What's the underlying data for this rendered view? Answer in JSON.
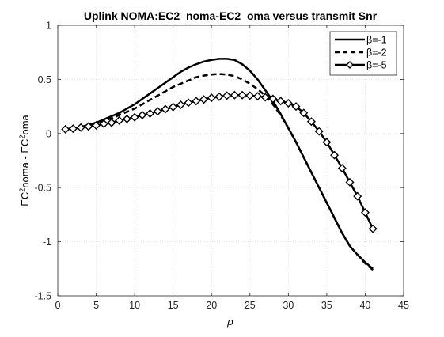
{
  "chart_data": {
    "type": "line",
    "title": "Uplink NOMA:EC2_noma-EC2_oma versus transmit Snr",
    "xlabel": "ρ",
    "ylabel": {
      "p1": "EC",
      "sup1": "2",
      "p2": "noma - EC",
      "sup2": "2",
      "p3": "oma"
    },
    "xlim": [
      0,
      45
    ],
    "ylim": [
      -1.5,
      1
    ],
    "xticks": [
      0,
      5,
      10,
      15,
      20,
      25,
      30,
      35,
      40,
      45
    ],
    "yticks": [
      -1.5,
      -1,
      -0.5,
      0,
      0.5,
      1
    ],
    "xtick_labels": [
      "0",
      "5",
      "10",
      "15",
      "20",
      "25",
      "30",
      "35",
      "40",
      "45"
    ],
    "ytick_labels": [
      "-1.5",
      "-1",
      "-0.5",
      "0",
      "0.5",
      "1"
    ],
    "grid": true,
    "legend_position": "top-right",
    "series": [
      {
        "name": "β=-1",
        "style": "solid",
        "marker": "none",
        "color": "#000000",
        "x": [
          1,
          2,
          3,
          4,
          5,
          6,
          7,
          8,
          9,
          10,
          11,
          12,
          13,
          14,
          15,
          16,
          17,
          18,
          19,
          20,
          21,
          22,
          23,
          24,
          25,
          26,
          27,
          28,
          29,
          30,
          31,
          32,
          33,
          34,
          35,
          36,
          37,
          38,
          39,
          40,
          41
        ],
        "y": [
          0.04,
          0.05,
          0.06,
          0.08,
          0.1,
          0.13,
          0.16,
          0.19,
          0.23,
          0.27,
          0.32,
          0.37,
          0.42,
          0.47,
          0.52,
          0.57,
          0.61,
          0.64,
          0.665,
          0.68,
          0.69,
          0.69,
          0.68,
          0.64,
          0.58,
          0.5,
          0.4,
          0.3,
          0.18,
          0.05,
          -0.08,
          -0.22,
          -0.36,
          -0.5,
          -0.64,
          -0.78,
          -0.92,
          -1.04,
          -1.12,
          -1.19,
          -1.25
        ]
      },
      {
        "name": "β=-2",
        "style": "dashed",
        "marker": "none",
        "color": "#000000",
        "x": [
          1,
          2,
          3,
          4,
          5,
          6,
          7,
          8,
          9,
          10,
          11,
          12,
          13,
          14,
          15,
          16,
          17,
          18,
          19,
          20,
          21,
          22,
          23,
          24,
          25,
          26,
          27,
          28,
          29,
          30,
          31,
          32,
          33,
          34,
          35,
          36,
          37,
          38,
          39,
          40,
          41
        ],
        "y": [
          0.04,
          0.05,
          0.06,
          0.08,
          0.1,
          0.12,
          0.14,
          0.17,
          0.2,
          0.23,
          0.27,
          0.31,
          0.35,
          0.39,
          0.43,
          0.46,
          0.49,
          0.52,
          0.535,
          0.545,
          0.55,
          0.545,
          0.53,
          0.5,
          0.46,
          0.41,
          0.35,
          0.27,
          0.17,
          0.05,
          -0.08,
          -0.22,
          -0.36,
          -0.5,
          -0.64,
          -0.78,
          -0.92,
          -1.04,
          -1.12,
          -1.2,
          -1.26
        ]
      },
      {
        "name": "β=-5",
        "style": "solid",
        "marker": "diamond",
        "color": "#000000",
        "x": [
          1,
          2,
          3,
          4,
          5,
          6,
          7,
          8,
          9,
          10,
          11,
          12,
          13,
          14,
          15,
          16,
          17,
          18,
          19,
          20,
          21,
          22,
          23,
          24,
          25,
          26,
          27,
          28,
          29,
          30,
          31,
          32,
          33,
          34,
          35,
          36,
          37,
          38,
          39,
          40,
          41
        ],
        "y": [
          0.04,
          0.045,
          0.055,
          0.065,
          0.075,
          0.09,
          0.1,
          0.12,
          0.135,
          0.15,
          0.17,
          0.185,
          0.205,
          0.225,
          0.245,
          0.265,
          0.285,
          0.3,
          0.315,
          0.33,
          0.34,
          0.35,
          0.355,
          0.355,
          0.35,
          0.345,
          0.335,
          0.32,
          0.3,
          0.28,
          0.25,
          0.19,
          0.11,
          0.02,
          -0.08,
          -0.2,
          -0.32,
          -0.45,
          -0.58,
          -0.73,
          -0.88
        ]
      }
    ]
  }
}
